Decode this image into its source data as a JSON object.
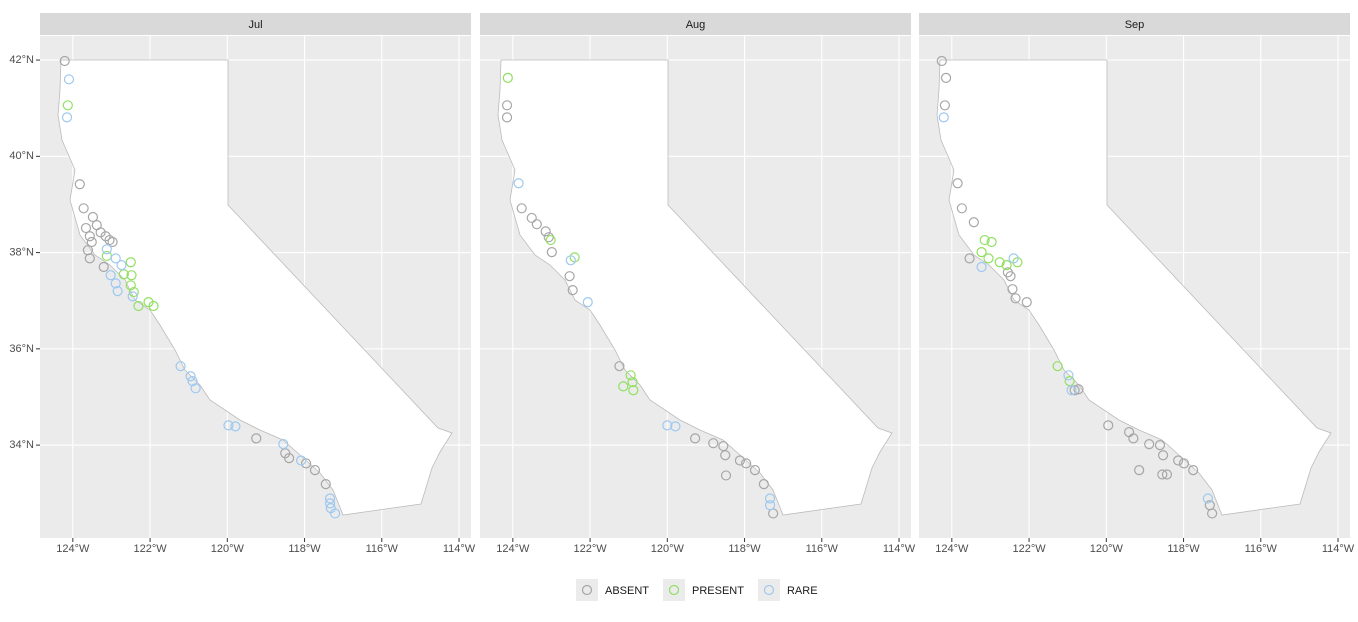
{
  "chart_data": [
    {
      "type": "scatter",
      "title": "Jul",
      "xlim": [
        -124.85,
        -113.69
      ],
      "ylim": [
        32.07,
        42.5
      ],
      "xticks": [
        {
          "value": -124,
          "label": "124°W"
        },
        {
          "value": -122,
          "label": "122°W"
        },
        {
          "value": -120,
          "label": "120°W"
        },
        {
          "value": -118,
          "label": "118°W"
        },
        {
          "value": -116,
          "label": "116°W"
        },
        {
          "value": -114,
          "label": "114°W"
        }
      ],
      "yticks": [
        {
          "value": 34,
          "label": "34°N"
        },
        {
          "value": 36,
          "label": "36°N"
        },
        {
          "value": 38,
          "label": "38°N"
        },
        {
          "value": 40,
          "label": "40°N"
        },
        {
          "value": 42,
          "label": "42°N"
        }
      ],
      "grid": true,
      "series": [
        {
          "name": "ABSENT",
          "color": "#a6a6a6",
          "x": [
            -124.21,
            -123.82,
            -123.72,
            -123.48,
            -123.38,
            -123.28,
            -123.15,
            -123.05,
            -122.97,
            -123.66,
            -123.56,
            -123.51,
            -123.61,
            -123.56,
            -123.2,
            -119.25,
            -118.5,
            -118.4,
            -117.96,
            -117.73,
            -117.45
          ],
          "y": [
            41.98,
            39.42,
            38.92,
            38.74,
            38.57,
            38.42,
            38.34,
            38.26,
            38.22,
            38.51,
            38.34,
            38.22,
            38.05,
            37.88,
            37.7,
            34.14,
            33.83,
            33.73,
            33.62,
            33.48,
            33.19
          ]
        },
        {
          "name": "PRESENT",
          "color": "#90e060",
          "x": [
            -124.13,
            -123.12,
            -122.68,
            -122.5,
            -122.48,
            -122.5,
            -122.42,
            -122.3,
            -122.04,
            -121.91
          ],
          "y": [
            41.06,
            37.93,
            37.55,
            37.8,
            37.53,
            37.32,
            37.18,
            36.89,
            36.97,
            36.89
          ]
        },
        {
          "name": "RARE",
          "color": "#9ec8f0",
          "x": [
            -124.1,
            -124.15,
            -123.12,
            -122.89,
            -122.74,
            -123.02,
            -122.89,
            -122.84,
            -122.45,
            -121.21,
            -120.95,
            -120.9,
            -120.82,
            -119.97,
            -119.79,
            -118.55,
            -118.09,
            -117.34,
            -117.34,
            -117.32,
            -117.21
          ],
          "y": [
            41.6,
            40.81,
            38.07,
            37.88,
            37.74,
            37.53,
            37.36,
            37.2,
            37.09,
            35.64,
            35.43,
            35.33,
            35.18,
            34.41,
            34.39,
            34.02,
            33.68,
            32.89,
            32.79,
            32.69,
            32.58
          ]
        }
      ]
    },
    {
      "type": "scatter",
      "title": "Aug",
      "xlim": [
        -124.85,
        -113.69
      ],
      "ylim": [
        32.07,
        42.5
      ],
      "xticks": [
        {
          "value": -124,
          "label": "124°W"
        },
        {
          "value": -122,
          "label": "122°W"
        },
        {
          "value": -120,
          "label": "120°W"
        },
        {
          "value": -118,
          "label": "118°W"
        },
        {
          "value": -116,
          "label": "116°W"
        },
        {
          "value": -114,
          "label": "114°W"
        }
      ],
      "grid": true,
      "series": [
        {
          "color": "#a6a6a6",
          "x": [
            -124.15,
            -124.15,
            -123.77,
            -123.51,
            -123.38,
            -123.15,
            -123.07,
            -122.99,
            -122.53,
            -122.45,
            -121.24,
            -119.28,
            -118.81,
            -118.55,
            -118.5,
            -118.48,
            -118.12,
            -117.96,
            -117.73,
            -117.5,
            -117.26
          ],
          "y": [
            41.06,
            40.81,
            38.92,
            38.72,
            38.59,
            38.44,
            38.32,
            38.01,
            37.51,
            37.22,
            35.64,
            34.14,
            34.04,
            33.98,
            33.79,
            33.37,
            33.68,
            33.62,
            33.48,
            33.19,
            32.58
          ]
        },
        {
          "color": "#90e060",
          "x": [
            -124.13,
            -123.02,
            -122.4,
            -120.95,
            -120.9,
            -120.88,
            -121.14
          ],
          "y": [
            41.63,
            38.26,
            37.9,
            35.45,
            35.31,
            35.14,
            35.22
          ]
        },
        {
          "color": "#9ec8f0",
          "x": [
            -123.85,
            -122.5,
            -122.06,
            -120.0,
            -119.79,
            -117.34,
            -117.34
          ],
          "y": [
            39.44,
            37.84,
            36.97,
            34.41,
            34.39,
            32.89,
            32.75
          ]
        }
      ]
    },
    {
      "type": "scatter",
      "title": "Sep",
      "xlim": [
        -124.85,
        -113.69
      ],
      "ylim": [
        32.07,
        42.5
      ],
      "xticks": [
        {
          "value": -124,
          "label": "124°W"
        },
        {
          "value": -122,
          "label": "122°W"
        },
        {
          "value": -120,
          "label": "120°W"
        },
        {
          "value": -118,
          "label": "118°W"
        },
        {
          "value": -116,
          "label": "116°W"
        },
        {
          "value": -114,
          "label": "114°W"
        }
      ],
      "grid": true,
      "series": [
        {
          "color": "#a6a6a6",
          "x": [
            -124.26,
            -124.15,
            -124.18,
            -123.85,
            -123.74,
            -123.43,
            -123.54,
            -122.55,
            -122.48,
            -122.43,
            -122.35,
            -122.06,
            -119.95,
            -119.41,
            -119.3,
            -119.15,
            -118.89,
            -118.61,
            -118.53,
            -118.55,
            -118.43,
            -118.14,
            -117.99,
            -117.75,
            -117.26,
            -117.32,
            -120.82,
            -120.72
          ],
          "y": [
            41.98,
            41.63,
            41.06,
            39.44,
            38.92,
            38.63,
            37.88,
            37.59,
            37.51,
            37.24,
            37.05,
            36.97,
            34.41,
            34.27,
            34.14,
            33.48,
            34.02,
            34.0,
            33.79,
            33.39,
            33.39,
            33.68,
            33.62,
            33.48,
            32.58,
            32.75,
            35.14,
            35.16
          ]
        },
        {
          "color": "#90e060",
          "x": [
            -123.15,
            -122.97,
            -123.23,
            -123.05,
            -122.76,
            -122.58,
            -122.3,
            -121.26,
            -120.95
          ],
          "y": [
            38.26,
            38.22,
            38.01,
            37.88,
            37.8,
            37.74,
            37.8,
            35.64,
            35.33
          ]
        },
        {
          "color": "#9ec8f0",
          "x": [
            -124.21,
            -123.23,
            -120.98,
            -120.9,
            -117.37,
            -122.4
          ],
          "y": [
            40.81,
            37.7,
            35.45,
            35.14,
            32.89,
            37.88
          ]
        }
      ]
    }
  ]
}
